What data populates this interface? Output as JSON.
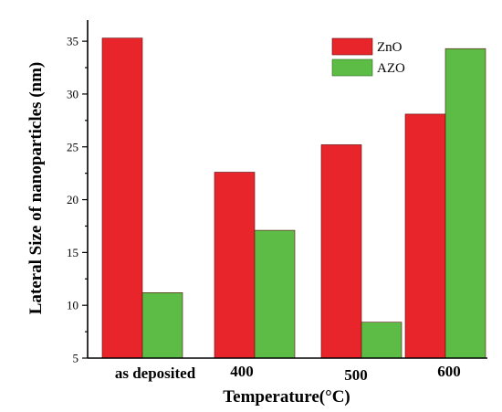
{
  "chart_data": {
    "type": "bar",
    "categories": [
      "as deposited",
      "400",
      "500",
      "600"
    ],
    "series": [
      {
        "name": "ZnO",
        "values": [
          35.3,
          22.6,
          25.2,
          28.1
        ],
        "color": "#e8252b"
      },
      {
        "name": "AZO",
        "values": [
          11.2,
          17.1,
          8.4,
          34.3
        ],
        "color": "#5cbc46"
      }
    ],
    "xlabel": "Temperature(°C)",
    "ylabel": "Lateral Size of nanoparticles (nm)",
    "ylim": [
      5,
      37
    ],
    "yticks": [
      5,
      10,
      15,
      20,
      25,
      30,
      35
    ],
    "grid": false,
    "legend_position": "top-right"
  }
}
